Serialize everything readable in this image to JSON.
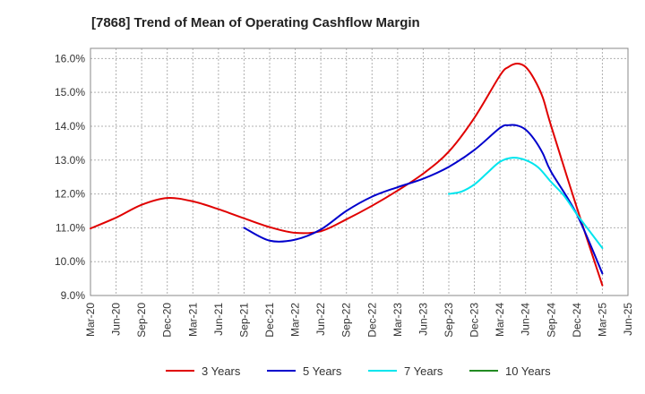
{
  "chart_data": {
    "type": "line",
    "title": "[7868]  Trend of Mean of Operating Cashflow Margin",
    "xlabel": "",
    "ylabel": "",
    "ylim": [
      9.0,
      16.3
    ],
    "yticks": [
      9.0,
      10.0,
      11.0,
      12.0,
      13.0,
      14.0,
      15.0,
      16.0
    ],
    "ytick_labels": [
      "9.0%",
      "10.0%",
      "11.0%",
      "12.0%",
      "13.0%",
      "14.0%",
      "15.0%",
      "16.0%"
    ],
    "x_categories": [
      "Mar-20",
      "Jun-20",
      "Sep-20",
      "Dec-20",
      "Mar-21",
      "Jun-21",
      "Sep-21",
      "Dec-21",
      "Mar-22",
      "Jun-22",
      "Sep-22",
      "Dec-22",
      "Mar-23",
      "Jun-23",
      "Sep-23",
      "Dec-23",
      "Mar-24",
      "Jun-24",
      "Sep-24",
      "Dec-24",
      "Mar-25",
      "Jun-25"
    ],
    "grid": true,
    "legend_position": "bottom",
    "series": [
      {
        "name": "3 Years",
        "color": "#e00000",
        "points": [
          [
            0,
            10.98
          ],
          [
            1,
            11.3
          ],
          [
            2,
            11.68
          ],
          [
            3,
            11.88
          ],
          [
            4,
            11.78
          ],
          [
            5,
            11.55
          ],
          [
            6,
            11.28
          ],
          [
            7,
            11.02
          ],
          [
            8,
            10.85
          ],
          [
            9,
            10.9
          ],
          [
            10,
            11.25
          ],
          [
            11,
            11.65
          ],
          [
            12,
            12.1
          ],
          [
            13,
            12.6
          ],
          [
            14,
            13.25
          ],
          [
            15,
            14.25
          ],
          [
            16,
            15.5
          ],
          [
            16.33,
            15.75
          ],
          [
            16.67,
            15.85
          ],
          [
            17,
            15.75
          ],
          [
            17.33,
            15.4
          ],
          [
            17.67,
            14.85
          ],
          [
            18,
            14.0
          ],
          [
            19,
            11.6
          ],
          [
            20,
            9.3
          ]
        ]
      },
      {
        "name": "5 Years",
        "color": "#0000cc",
        "points": [
          [
            6,
            11.0
          ],
          [
            7,
            10.62
          ],
          [
            8,
            10.65
          ],
          [
            9,
            10.95
          ],
          [
            10,
            11.5
          ],
          [
            11,
            11.92
          ],
          [
            12,
            12.2
          ],
          [
            13,
            12.45
          ],
          [
            14,
            12.8
          ],
          [
            15,
            13.3
          ],
          [
            16,
            13.95
          ],
          [
            16.33,
            14.03
          ],
          [
            16.67,
            14.02
          ],
          [
            17,
            13.9
          ],
          [
            17.33,
            13.62
          ],
          [
            17.67,
            13.2
          ],
          [
            18,
            12.65
          ],
          [
            19,
            11.4
          ],
          [
            20,
            9.65
          ]
        ]
      },
      {
        "name": "7 Years",
        "color": "#00e5ee",
        "points": [
          [
            14,
            12.0
          ],
          [
            14.5,
            12.07
          ],
          [
            15,
            12.28
          ],
          [
            15.5,
            12.62
          ],
          [
            16,
            12.95
          ],
          [
            16.5,
            13.07
          ],
          [
            17,
            13.0
          ],
          [
            17.5,
            12.78
          ],
          [
            18,
            12.35
          ],
          [
            18.5,
            11.95
          ],
          [
            19,
            11.4
          ],
          [
            19.5,
            10.9
          ],
          [
            20,
            10.4
          ]
        ]
      },
      {
        "name": "10 Years",
        "color": "#228b22",
        "points": []
      }
    ]
  }
}
